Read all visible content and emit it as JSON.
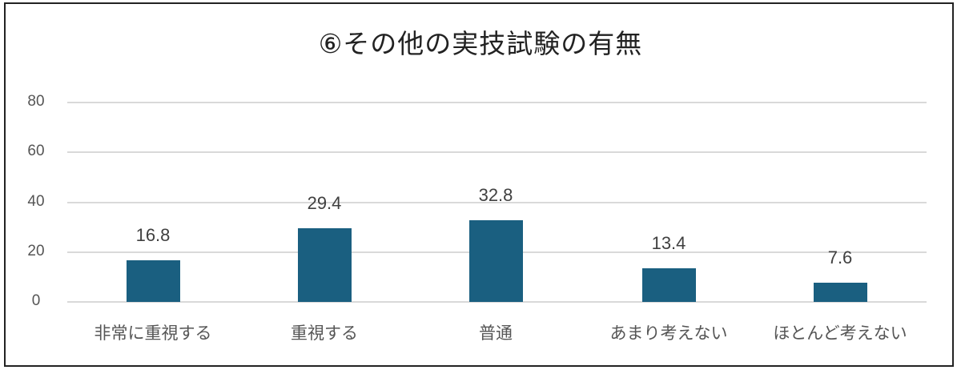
{
  "chart_data": {
    "type": "bar",
    "title": "⑥その他の実技試験の有無",
    "categories": [
      "非常に重視する",
      "重視する",
      "普通",
      "あまり考えない",
      "ほとんど考えない"
    ],
    "values": [
      16.8,
      29.4,
      32.8,
      13.4,
      7.6
    ],
    "data_labels": [
      "16.8",
      "29.4",
      "32.8",
      "13.4",
      "7.6"
    ],
    "xlabel": "",
    "ylabel": "",
    "ylim": [
      0,
      80
    ],
    "yticks": [
      "0",
      "20",
      "40",
      "60",
      "80"
    ],
    "grid": true,
    "legend": "none",
    "bar_color": "#1a5f80"
  }
}
